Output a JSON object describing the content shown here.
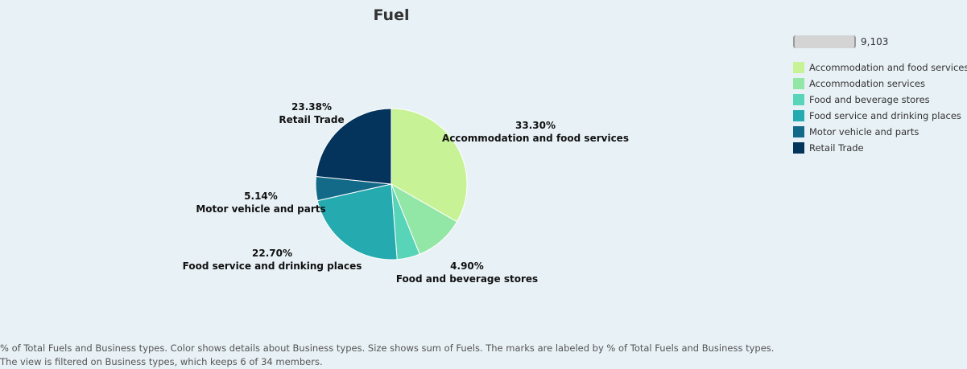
{
  "chart_data": {
    "type": "pie",
    "title": "Fuel",
    "slices": [
      {
        "category": "Accommodation and food services",
        "percent_label": "33.30%",
        "value": 33.3
      },
      {
        "category": "Accommodation services",
        "percent_label": "",
        "value": 10.58
      },
      {
        "category": "Food and beverage stores",
        "percent_label": "4.90%",
        "value": 4.9
      },
      {
        "category": "Food service and drinking places",
        "percent_label": "22.70%",
        "value": 22.7
      },
      {
        "category": "Motor vehicle and parts",
        "percent_label": "5.14%",
        "value": 5.14
      },
      {
        "category": "Retail Trade",
        "percent_label": "23.38%",
        "value": 23.38
      }
    ],
    "colors": [
      "#c8f296",
      "#92e6a6",
      "#58d4b8",
      "#25aab0",
      "#136a88",
      "#04335c"
    ],
    "size_legend": {
      "value": "9,103"
    },
    "legend": {
      "placement": "right",
      "entries": [
        "Accommodation and food services",
        "Accommodation services",
        "Food and beverage stores",
        "Food service and drinking places",
        "Motor vehicle and parts",
        "Retail Trade"
      ]
    }
  },
  "caption": "% of Total Fuels and Business types.  Color shows details about Business types.  Size shows sum of Fuels.  The marks are labeled by % of Total Fuels and Business types. The view is filtered on Business types, which keeps 6 of 34 members."
}
